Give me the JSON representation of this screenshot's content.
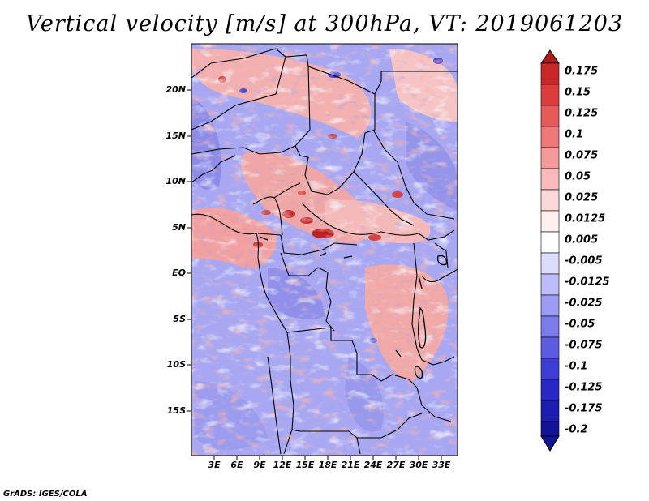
{
  "title": "Vertical velocity [m/s] at 300hPa, VT: 2019061203",
  "credit": "GrADS: IGES/COLA",
  "map": {
    "lat_labels": [
      "20N",
      "15N",
      "10N",
      "5N",
      "EQ",
      "5S",
      "10S",
      "15S"
    ],
    "lon_labels": [
      "3E",
      "6E",
      "9E",
      "12E",
      "15E",
      "18E",
      "21E",
      "24E",
      "27E",
      "30E",
      "33E"
    ]
  },
  "colorbar": {
    "levels": [
      "0.175",
      "0.15",
      "0.125",
      "0.1",
      "0.075",
      "0.05",
      "0.025",
      "0.0125",
      "0.005",
      "-0.005",
      "-0.0125",
      "-0.025",
      "-0.05",
      "-0.075",
      "-0.1",
      "-0.125",
      "-0.175",
      "-0.2"
    ],
    "colors": [
      "#b41818",
      "#c82828",
      "#dc3c3c",
      "#e65a5a",
      "#ee7878",
      "#f49a9a",
      "#f8baba",
      "#fcd8d8",
      "#fff0f0",
      "#ffffff",
      "#dcdcff",
      "#bcbcfa",
      "#9c9cf4",
      "#7c7cec",
      "#5c5ce2",
      "#3e3ed6",
      "#2828c4",
      "#1c1cb0",
      "#12129a"
    ]
  }
}
